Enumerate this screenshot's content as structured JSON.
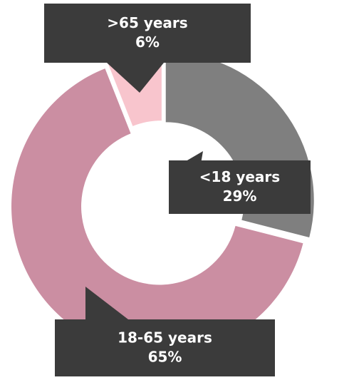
{
  "chart_data": {
    "type": "donut",
    "categories": [
      "<18 years",
      "18-65 years",
      ">65 years"
    ],
    "values": [
      29,
      65,
      6
    ],
    "value_labels": [
      "29%",
      "65%",
      "6%"
    ],
    "colors": [
      "#7f7f7f",
      "#cb8ea2",
      "#f8c5cd"
    ]
  }
}
